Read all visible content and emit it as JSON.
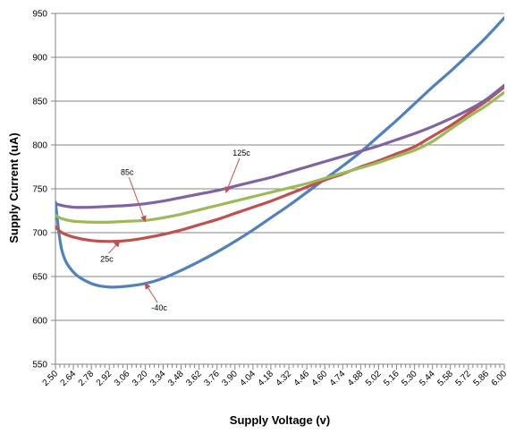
{
  "chart_data": {
    "type": "line",
    "title": "",
    "xlabel": "Supply Voltage (v)",
    "ylabel": "Supply Current (uA)",
    "xlim": [
      2.5,
      6.0
    ],
    "ylim": [
      550,
      950
    ],
    "grid": true,
    "x_tick_labels": [
      "2.50",
      "2.64",
      "2.78",
      "2.92",
      "3.06",
      "3.20",
      "3.34",
      "3.48",
      "3.62",
      "3.76",
      "3.90",
      "4.04",
      "4.18",
      "4.32",
      "4.46",
      "4.60",
      "4.74",
      "4.88",
      "5.02",
      "5.16",
      "5.30",
      "5.44",
      "5.58",
      "5.72",
      "5.86",
      "6.00"
    ],
    "y_ticks": [
      550,
      600,
      650,
      700,
      750,
      800,
      850,
      900,
      950
    ],
    "x": [
      2.5,
      2.55,
      2.64,
      2.78,
      2.92,
      3.06,
      3.2,
      3.34,
      3.48,
      3.62,
      3.76,
      3.9,
      4.04,
      4.18,
      4.32,
      4.46,
      4.6,
      4.74,
      4.88,
      5.02,
      5.16,
      5.3,
      5.44,
      5.58,
      5.72,
      5.86,
      6.0
    ],
    "series": [
      {
        "name": "-40c",
        "color": "#4f81bd",
        "values": [
          735,
          680,
          655,
          642,
          638,
          639,
          642,
          648,
          657,
          667,
          678,
          690,
          703,
          717,
          731,
          746,
          761,
          776,
          792,
          810,
          828,
          847,
          866,
          884,
          903,
          923,
          945
        ]
      },
      {
        "name": "25c",
        "color": "#c0504d",
        "values": [
          707,
          700,
          695,
          691,
          690,
          691,
          694,
          698,
          703,
          709,
          715,
          722,
          729,
          736,
          744,
          752,
          760,
          767,
          775,
          782,
          790,
          798,
          810,
          822,
          836,
          850,
          866
        ]
      },
      {
        "name": "85c",
        "color": "#9bbb59",
        "values": [
          720,
          716,
          713,
          712,
          712,
          713,
          714,
          717,
          721,
          726,
          731,
          736,
          741,
          746,
          751,
          756,
          762,
          768,
          774,
          780,
          787,
          794,
          804,
          818,
          832,
          845,
          860
        ]
      },
      {
        "name": "125c",
        "color": "#8064a2",
        "values": [
          733,
          731,
          729,
          729,
          730,
          731,
          733,
          736,
          740,
          744,
          748,
          753,
          758,
          763,
          769,
          775,
          781,
          787,
          793,
          799,
          806,
          813,
          821,
          830,
          840,
          852,
          868
        ]
      }
    ],
    "annotations": [
      {
        "label": "125c",
        "series": "125c",
        "text_x": 3.95,
        "text_y": 788,
        "arrow_x": 3.83,
        "arrow_y": 746
      },
      {
        "label": "85c",
        "series": "85c",
        "text_x": 3.06,
        "text_y": 766,
        "arrow_x": 3.2,
        "arrow_y": 713
      },
      {
        "label": "25c",
        "series": "25c",
        "text_x": 2.9,
        "text_y": 667,
        "arrow_x": 3.0,
        "arrow_y": 690
      },
      {
        "label": "-40c",
        "series": "-40c",
        "text_x": 3.31,
        "text_y": 611,
        "arrow_x": 3.2,
        "arrow_y": 642
      }
    ]
  }
}
